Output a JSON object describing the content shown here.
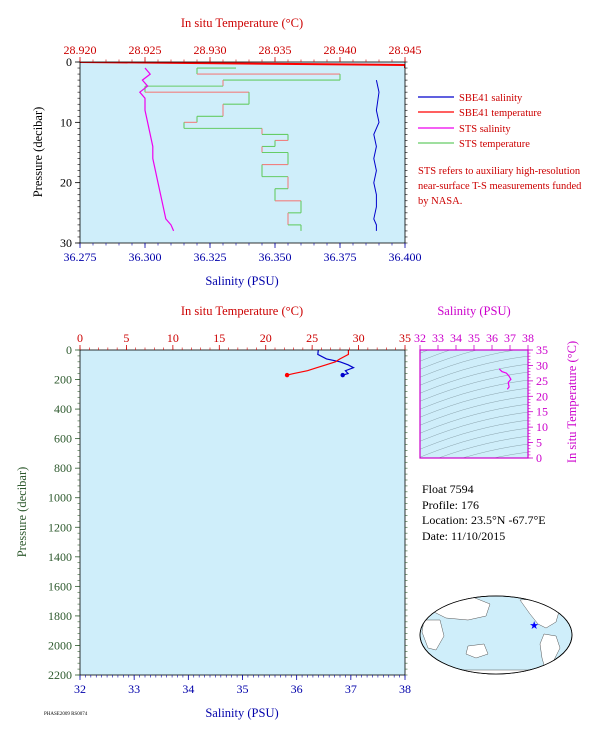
{
  "colors": {
    "plot_bg": "#cfeefa",
    "salinity": "#0000cc",
    "temperature": "#ff0000",
    "sts_salinity": "#ee00ee",
    "sts_temperature": "#66cc66",
    "sts_temp_alt": "#f08080",
    "pressure_axis": "#2e5a2e",
    "ts_axis": "#cc00cc",
    "label_red": "#cc0000",
    "label_blue": "#0000aa"
  },
  "chart_data": [
    {
      "id": "near-surface",
      "type": "line",
      "top_axis_title": "In situ Temperature (°C)",
      "bottom_axis_title": "Salinity (PSU)",
      "ylabel": "Pressure (decibar)",
      "temp_range": [
        28.92,
        28.945
      ],
      "temp_ticks": [
        "28.920",
        "28.925",
        "28.930",
        "28.935",
        "28.940",
        "28.945"
      ],
      "sal_range": [
        36.275,
        36.4
      ],
      "sal_ticks": [
        "36.275",
        "36.300",
        "36.325",
        "36.350",
        "36.375",
        "36.400"
      ],
      "pressure_range": [
        0,
        30
      ],
      "pressure_ticks": [
        "0",
        "10",
        "20",
        "30"
      ],
      "legend": [
        {
          "label": "SBE41 salinity",
          "color": "#0000cc"
        },
        {
          "label": "SBE41 temperature",
          "color": "#ff0000"
        },
        {
          "label": "STS salinity",
          "color": "#ee00ee"
        },
        {
          "label": "STS temperature",
          "color": "#66cc66"
        }
      ],
      "note": "STS refers to auxiliary high-resolution near-surface T-S measurements funded by NASA.",
      "series": [
        {
          "name": "SBE41 salinity",
          "pressure": [
            3,
            5,
            8,
            10,
            12,
            14,
            16,
            18,
            20,
            22,
            24,
            26,
            27,
            28
          ],
          "values": [
            36.389,
            36.39,
            36.389,
            36.39,
            36.388,
            36.389,
            36.388,
            36.389,
            36.388,
            36.389,
            36.389,
            36.388,
            36.389,
            36.389
          ]
        },
        {
          "name": "SBE41 temperature",
          "pressure": [
            0,
            0.5,
            1
          ],
          "values": [
            28.92,
            28.945,
            28.945
          ]
        },
        {
          "name": "STS salinity",
          "pressure": [
            1,
            2,
            3,
            4,
            5,
            6,
            8,
            10,
            12,
            14,
            16,
            18,
            20,
            22,
            24,
            26,
            27,
            28
          ],
          "values": [
            36.3,
            36.302,
            36.299,
            36.301,
            36.298,
            36.3,
            36.3,
            36.301,
            36.302,
            36.303,
            36.303,
            36.304,
            36.305,
            36.306,
            36.307,
            36.308,
            36.31,
            36.311
          ]
        },
        {
          "name": "STS temperature",
          "pressure": [
            1,
            2,
            3,
            4,
            5,
            7,
            9,
            10,
            11,
            12,
            13,
            14,
            15,
            17,
            19,
            21,
            23,
            25,
            27,
            28
          ],
          "values": [
            28.932,
            28.929,
            28.94,
            28.931,
            28.925,
            28.933,
            28.931,
            28.929,
            28.928,
            28.934,
            28.936,
            28.935,
            28.934,
            28.936,
            28.934,
            28.936,
            28.935,
            28.937,
            28.936,
            28.937
          ]
        }
      ]
    },
    {
      "id": "full-profile",
      "type": "line",
      "top_axis_title": "In situ Temperature (°C)",
      "bottom_axis_title": "Salinity (PSU)",
      "ylabel": "Pressure (decibar)",
      "temp_range": [
        0,
        35
      ],
      "temp_ticks": [
        "0",
        "5",
        "10",
        "15",
        "20",
        "25",
        "30",
        "35"
      ],
      "sal_range": [
        32,
        38
      ],
      "sal_ticks": [
        "32",
        "33",
        "34",
        "35",
        "36",
        "37",
        "38"
      ],
      "pressure_range": [
        0,
        2200
      ],
      "pressure_ticks": [
        "0",
        "200",
        "400",
        "600",
        "800",
        "1000",
        "1200",
        "1400",
        "1600",
        "1800",
        "2000",
        "2200"
      ],
      "series": [
        {
          "name": "Salinity",
          "pressure": [
            0,
            30,
            60,
            80,
            100,
            120,
            140,
            160,
            170
          ],
          "values": [
            36.4,
            36.39,
            36.55,
            36.8,
            36.95,
            37.05,
            36.9,
            36.95,
            36.85
          ]
        },
        {
          "name": "Temperature",
          "pressure": [
            0,
            30,
            60,
            80,
            100,
            120,
            140,
            160,
            170
          ],
          "values": [
            28.9,
            28.9,
            28.0,
            27.5,
            26.5,
            25.5,
            24.5,
            23.0,
            22.3
          ]
        }
      ]
    },
    {
      "id": "ts-diagram",
      "type": "line",
      "top_axis_title": "Salinity (PSU)",
      "right_axis_title": "In situ Temperature (°C)",
      "sal_range": [
        32,
        38
      ],
      "sal_ticks": [
        "32",
        "33",
        "34",
        "35",
        "36",
        "37",
        "38"
      ],
      "temp_range": [
        0,
        35
      ],
      "temp_ticks": [
        "0",
        "5",
        "10",
        "15",
        "20",
        "25",
        "30",
        "35"
      ],
      "series": [
        {
          "name": "T-S",
          "salinity": [
            36.4,
            36.55,
            36.8,
            36.95,
            37.05,
            36.9,
            36.95,
            36.85
          ],
          "temperature": [
            28.9,
            28.0,
            27.5,
            26.5,
            25.5,
            24.5,
            23.0,
            22.3
          ]
        }
      ]
    }
  ],
  "float_info": {
    "float": "Float  7594",
    "profile": "Profile:  176",
    "location": "Location:  23.5°N  -67.7°E",
    "date": "Date:  11/10/2015"
  },
  "map": {
    "marker_lat": 23.5,
    "marker_lon": -67.7
  },
  "footer_stamp": "PHASE2009 RS0074"
}
